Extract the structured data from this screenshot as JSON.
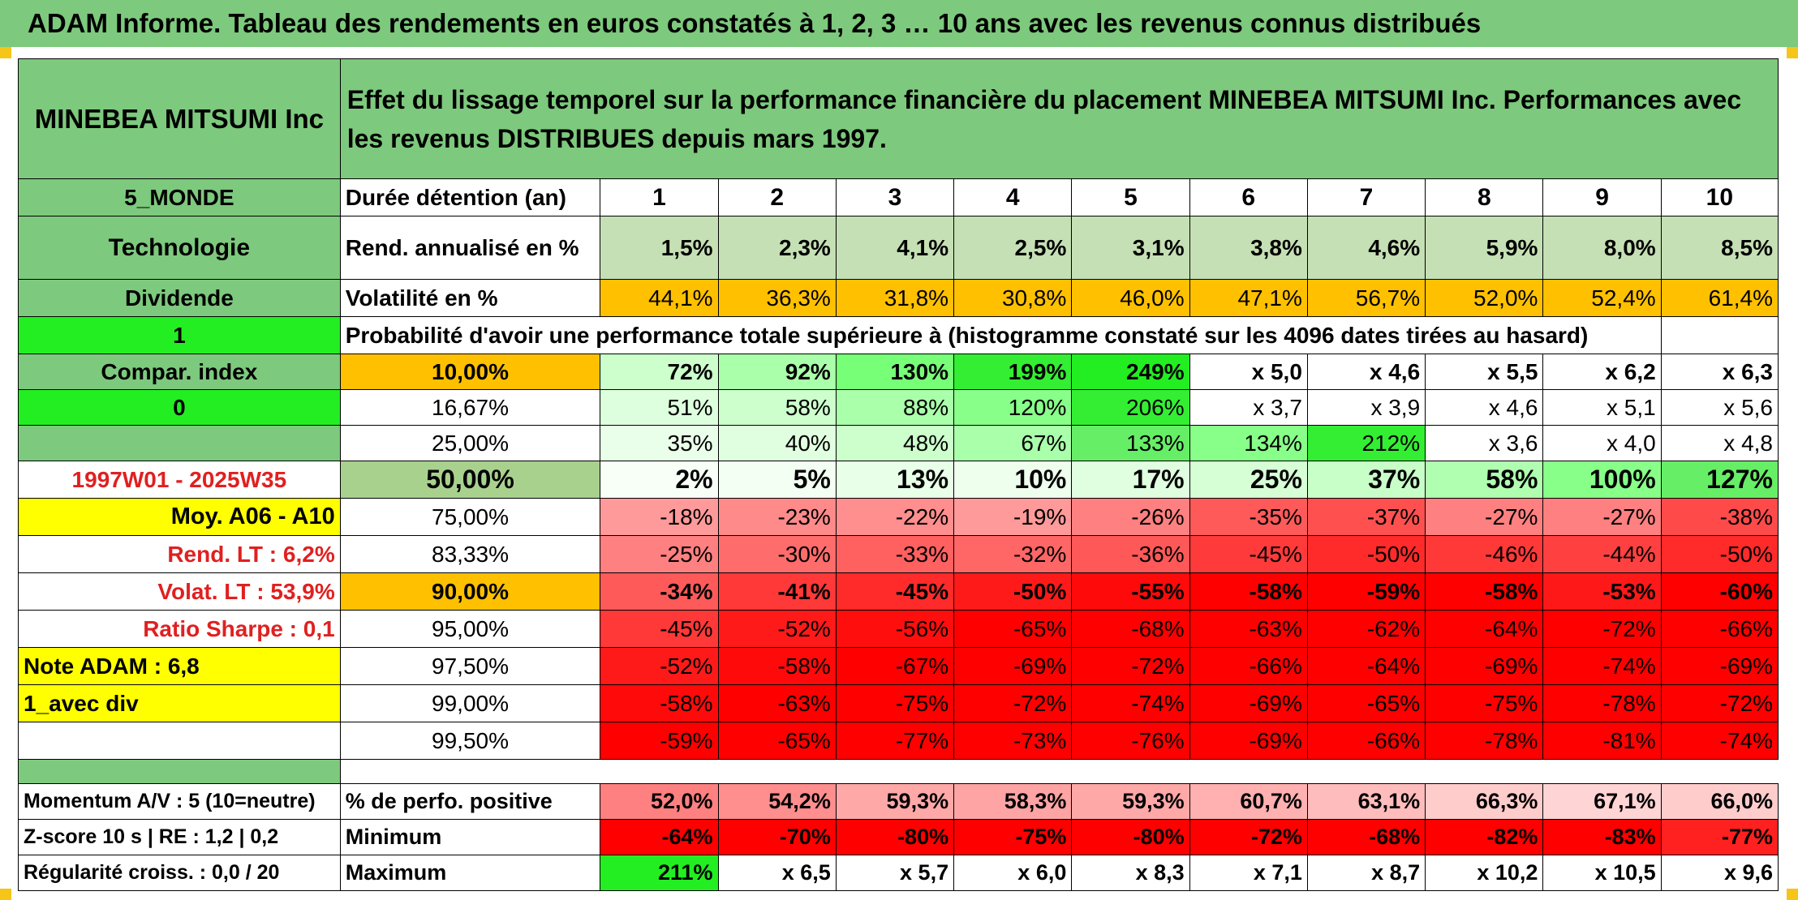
{
  "title": "ADAM Informe. Tableau des rendements en euros constatés à 1, 2, 3 … 10 ans avec les revenus connus distribués",
  "sidebar": {
    "name": "MINEBEA MITSUMI Inc",
    "zone": "5_MONDE",
    "sector": "Technologie",
    "dividend_label": "Dividende",
    "dividend_value": "1",
    "compar_label": "Compar. index",
    "compar_value": "0",
    "period": "1997W01 - 2025W35",
    "moy": "Moy. A06 - A10",
    "rend_lt": "Rend. LT :    6,2%",
    "volat_lt": "Volat. LT :    53,9%",
    "ratio_sharpe": "Ratio Sharpe :    0,1",
    "note_adam": "Note ADAM : 6,8",
    "avec_div": "1_avec div",
    "momentum": "Momentum A/V : 5 (10=neutre)",
    "zscore": "Z-score 10 s | RE : 1,2 | 0,2",
    "regularite": "Régularité croiss. : 0,0 / 20"
  },
  "description": "Effet du lissage temporel sur la performance financière du placement MINEBEA MITSUMI Inc. Performances avec les revenus DISTRIBUES depuis mars 1997.",
  "labels": {
    "duree": "Durée détention (an)",
    "rend": "Rend. annualisé en %",
    "vol": "Volatilité en %",
    "proba": "Probabilité d'avoir une performance totale supérieure à (histogramme constaté sur les 4096 dates tirées au hasard)",
    "perf_pos": "% de perfo. positive",
    "minimum": "Minimum",
    "maximum": "Maximum"
  },
  "years": [
    "1",
    "2",
    "3",
    "4",
    "5",
    "6",
    "7",
    "8",
    "9",
    "10"
  ],
  "rend": [
    "1,5%",
    "2,3%",
    "4,1%",
    "2,5%",
    "3,1%",
    "3,8%",
    "4,6%",
    "5,9%",
    "8,0%",
    "8,5%"
  ],
  "vol": [
    "44,1%",
    "36,3%",
    "31,8%",
    "30,8%",
    "46,0%",
    "47,1%",
    "56,7%",
    "52,0%",
    "52,4%",
    "61,4%"
  ],
  "rows": [
    {
      "p": "10,00%",
      "v": [
        "72%",
        "92%",
        "130%",
        "199%",
        "249%",
        "x 5,0",
        "x 4,6",
        "x 5,5",
        "x 6,2",
        "x 6,3"
      ]
    },
    {
      "p": "16,67%",
      "v": [
        "51%",
        "58%",
        "88%",
        "120%",
        "206%",
        "x 3,7",
        "x 3,9",
        "x 4,6",
        "x 5,1",
        "x 5,6"
      ]
    },
    {
      "p": "25,00%",
      "v": [
        "35%",
        "40%",
        "48%",
        "67%",
        "133%",
        "134%",
        "212%",
        "x 3,6",
        "x 4,0",
        "x 4,8"
      ]
    },
    {
      "p": "50,00%",
      "v": [
        "2%",
        "5%",
        "13%",
        "10%",
        "17%",
        "25%",
        "37%",
        "58%",
        "100%",
        "127%"
      ]
    },
    {
      "p": "75,00%",
      "v": [
        "-18%",
        "-23%",
        "-22%",
        "-19%",
        "-26%",
        "-35%",
        "-37%",
        "-27%",
        "-27%",
        "-38%"
      ]
    },
    {
      "p": "83,33%",
      "v": [
        "-25%",
        "-30%",
        "-33%",
        "-32%",
        "-36%",
        "-45%",
        "-50%",
        "-46%",
        "-44%",
        "-50%"
      ]
    },
    {
      "p": "90,00%",
      "v": [
        "-34%",
        "-41%",
        "-45%",
        "-50%",
        "-55%",
        "-58%",
        "-59%",
        "-58%",
        "-53%",
        "-60%"
      ]
    },
    {
      "p": "95,00%",
      "v": [
        "-45%",
        "-52%",
        "-56%",
        "-65%",
        "-68%",
        "-63%",
        "-62%",
        "-64%",
        "-72%",
        "-66%"
      ]
    },
    {
      "p": "97,50%",
      "v": [
        "-52%",
        "-58%",
        "-67%",
        "-69%",
        "-72%",
        "-66%",
        "-64%",
        "-69%",
        "-74%",
        "-69%"
      ]
    },
    {
      "p": "99,00%",
      "v": [
        "-58%",
        "-63%",
        "-75%",
        "-72%",
        "-74%",
        "-69%",
        "-65%",
        "-75%",
        "-78%",
        "-72%"
      ]
    },
    {
      "p": "99,50%",
      "v": [
        "-59%",
        "-65%",
        "-77%",
        "-73%",
        "-76%",
        "-69%",
        "-66%",
        "-78%",
        "-81%",
        "-74%"
      ]
    }
  ],
  "perf_pos": [
    "52,0%",
    "54,2%",
    "59,3%",
    "58,3%",
    "59,3%",
    "60,7%",
    "63,1%",
    "66,3%",
    "67,1%",
    "66,0%"
  ],
  "minimum": [
    "-64%",
    "-70%",
    "-80%",
    "-75%",
    "-80%",
    "-72%",
    "-68%",
    "-82%",
    "-83%",
    "-77%"
  ],
  "maximum": [
    "211%",
    "x 6,5",
    "x 5,7",
    "x 6,0",
    "x 8,3",
    "x 7,1",
    "x 8,7",
    "x 10,2",
    "x 10,5",
    "x 9,6"
  ],
  "colors": {
    "header_green": "#7dc97d",
    "light_green": "#c5e0b4",
    "orange": "#ffc000",
    "yellow": "#ffff00",
    "bright_green": "#22ee22",
    "red": "#ff0000",
    "label_red": "#e02020"
  }
}
